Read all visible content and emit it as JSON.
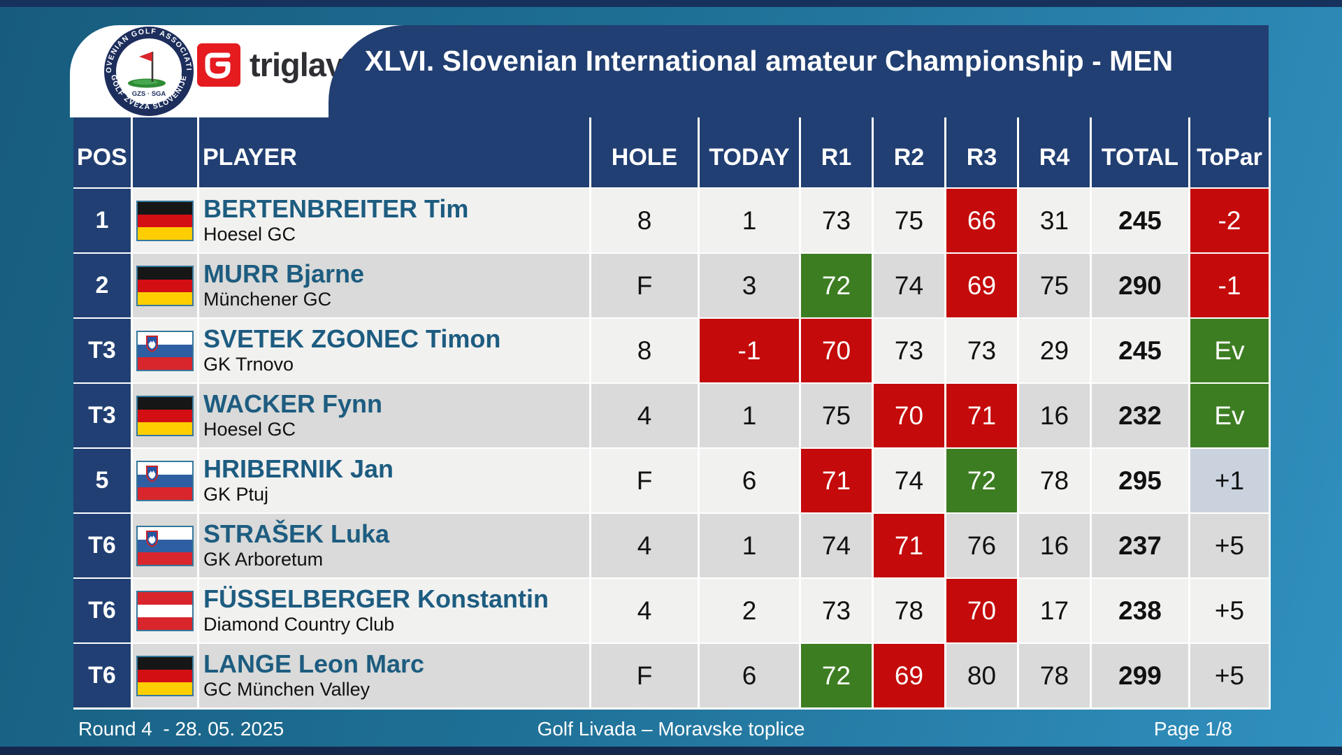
{
  "header": {
    "title": "XLVI. Slovenian International amateur Championship - MEN",
    "sga_logo": {
      "ring_top": "SLOVENIAN GOLF ASSOCIATION",
      "ring_bottom": "GOLF  ZVEZA  SLOVENIJE",
      "center": "GZS · SGA"
    },
    "triglav_logo": {
      "text": "triglav"
    }
  },
  "table": {
    "columns": [
      "POS",
      "",
      "PLAYER",
      "HOLE",
      "TODAY",
      "R1",
      "R2",
      "R3",
      "R4",
      "TOTAL",
      "ToPar"
    ],
    "rows": [
      {
        "pos": "1",
        "flag": "de",
        "name": "BERTENBREITER Tim",
        "club": "Hoesel GC",
        "cells": [
          {
            "v": "8"
          },
          {
            "v": "1"
          },
          {
            "v": "73"
          },
          {
            "v": "75"
          },
          {
            "v": "66",
            "hl": "red"
          },
          {
            "v": "31"
          },
          {
            "v": "245"
          },
          {
            "v": "-2",
            "hl": "red"
          }
        ]
      },
      {
        "pos": "2",
        "flag": "de",
        "name": "MURR Bjarne",
        "club": "Münchener GC",
        "cells": [
          {
            "v": "F"
          },
          {
            "v": "3"
          },
          {
            "v": "72",
            "hl": "green"
          },
          {
            "v": "74"
          },
          {
            "v": "69",
            "hl": "red"
          },
          {
            "v": "75"
          },
          {
            "v": "290"
          },
          {
            "v": "-1",
            "hl": "red"
          }
        ]
      },
      {
        "pos": "T3",
        "flag": "si",
        "name": "SVETEK ZGONEC Timon",
        "club": "GK Trnovo",
        "cells": [
          {
            "v": "8"
          },
          {
            "v": "-1",
            "hl": "red"
          },
          {
            "v": "70",
            "hl": "red"
          },
          {
            "v": "73"
          },
          {
            "v": "73"
          },
          {
            "v": "29"
          },
          {
            "v": "245"
          },
          {
            "v": "Ev",
            "hl": "green"
          }
        ]
      },
      {
        "pos": "T3",
        "flag": "de",
        "name": "WACKER Fynn",
        "club": "Hoesel GC",
        "cells": [
          {
            "v": "4"
          },
          {
            "v": "1"
          },
          {
            "v": "75"
          },
          {
            "v": "70",
            "hl": "red"
          },
          {
            "v": "71",
            "hl": "red"
          },
          {
            "v": "16"
          },
          {
            "v": "232"
          },
          {
            "v": "Ev",
            "hl": "green"
          }
        ]
      },
      {
        "pos": "5",
        "flag": "si",
        "name": "HRIBERNIK Jan",
        "club": "GK Ptuj",
        "cells": [
          {
            "v": "F"
          },
          {
            "v": "6"
          },
          {
            "v": "71",
            "hl": "red"
          },
          {
            "v": "74"
          },
          {
            "v": "72",
            "hl": "green"
          },
          {
            "v": "78"
          },
          {
            "v": "295"
          },
          {
            "v": "+1",
            "hl": "muted"
          }
        ]
      },
      {
        "pos": "T6",
        "flag": "si",
        "name": "STRAŠEK Luka",
        "club": "GK Arboretum",
        "cells": [
          {
            "v": "4"
          },
          {
            "v": "1"
          },
          {
            "v": "74"
          },
          {
            "v": "71",
            "hl": "red"
          },
          {
            "v": "76"
          },
          {
            "v": "16"
          },
          {
            "v": "237"
          },
          {
            "v": "+5"
          }
        ]
      },
      {
        "pos": "T6",
        "flag": "at",
        "name": "FÜSSELBERGER Konstantin",
        "club": "Diamond Country Club",
        "cells": [
          {
            "v": "4"
          },
          {
            "v": "2"
          },
          {
            "v": "73"
          },
          {
            "v": "78"
          },
          {
            "v": "70",
            "hl": "red"
          },
          {
            "v": "17"
          },
          {
            "v": "238"
          },
          {
            "v": "+5"
          }
        ]
      },
      {
        "pos": "T6",
        "flag": "de",
        "name": "LANGE Leon Marc",
        "club": "GC München Valley",
        "cells": [
          {
            "v": "F"
          },
          {
            "v": "6"
          },
          {
            "v": "72",
            "hl": "green"
          },
          {
            "v": "69",
            "hl": "red"
          },
          {
            "v": "80"
          },
          {
            "v": "78"
          },
          {
            "v": "299"
          },
          {
            "v": "+5"
          }
        ]
      }
    ]
  },
  "footer": {
    "round": "Round 4  - 28. 05. 2025",
    "venue": "Golf Livada – Moravske toplice",
    "page": "Page 1/8"
  },
  "colors": {
    "navy": "#213f72",
    "red": "#c40a0a",
    "green": "#3d7d22",
    "topar_blue": "#cad2dd",
    "row_light": "#f1f1f0",
    "row_dark": "#d9dad9",
    "name": "#1d5c80",
    "strip": "#17315d"
  }
}
